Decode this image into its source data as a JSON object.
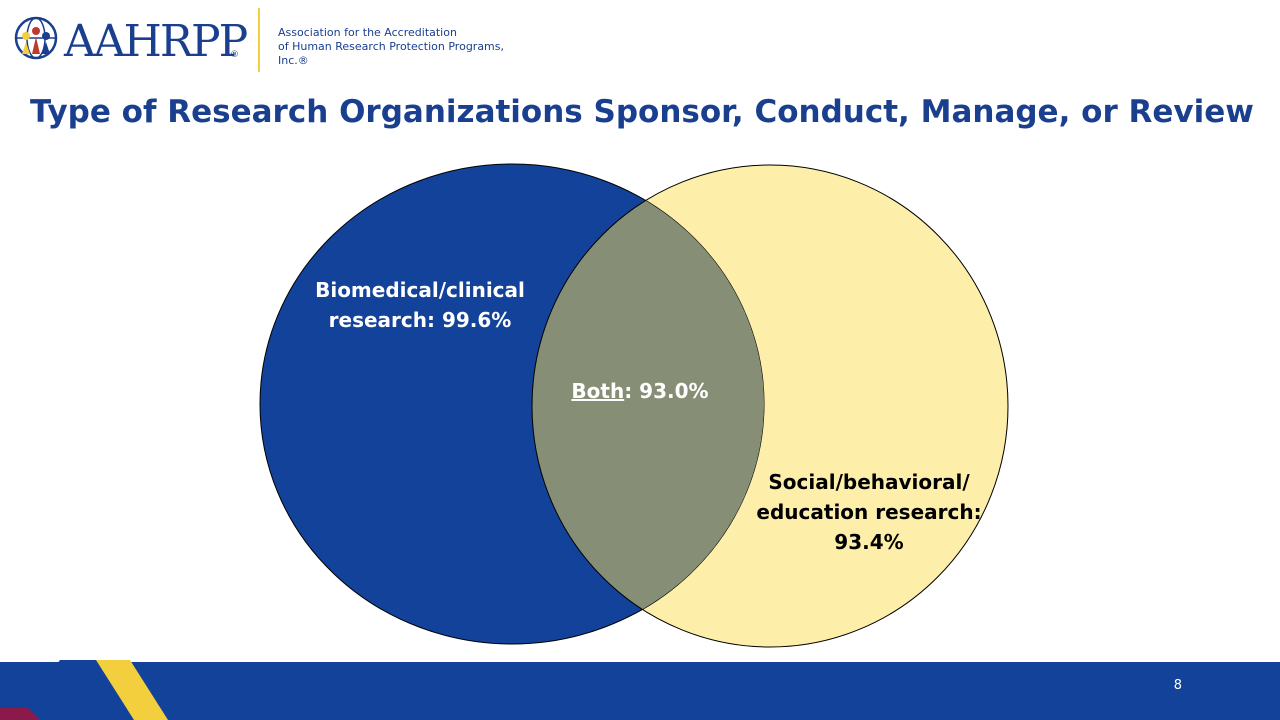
{
  "header": {
    "logo_text": "AAHRPP",
    "logo_reg": "®",
    "org_line1": "Association for the Accreditation",
    "org_line2": "of Human Research Protection Programs, Inc.®"
  },
  "slide": {
    "title": "Type of Research Organizations Sponsor, Conduct, Manage, or Review",
    "page_number": "8"
  },
  "venn": {
    "left": {
      "label_line1": "Biomedical/clinical",
      "label_line2": "research: 99.6%",
      "value": 99.6,
      "color": "#13429a"
    },
    "right": {
      "label_line1": "Social/behavioral/",
      "label_line2": "education research:",
      "label_line3": "93.4%",
      "value": 93.4,
      "color": "#fdeeaa"
    },
    "overlap": {
      "label_underlined": "Both",
      "label_rest": ": 93.0%",
      "value": 93.0,
      "color": "#868f76"
    }
  },
  "colors": {
    "brand_blue": "#1a3f8f",
    "brand_yellow": "#f3cf3e",
    "footer_blue": "#13429a",
    "footer_maroon": "#8b1a4a"
  },
  "icons": {
    "logo_mark": "globe-people-icon"
  }
}
